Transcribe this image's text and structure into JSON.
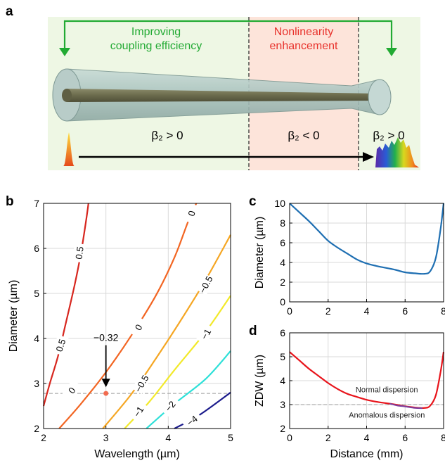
{
  "panel_a": {
    "letter": "a",
    "label_coupling": [
      "Improving",
      "coupling efficiency"
    ],
    "label_nonlinear": [
      "Nonlinearity",
      "enhancement"
    ],
    "beta_normal_left": "β₂ > 0",
    "beta_anomalous": "β₂ < 0",
    "beta_normal_right": "β₂ > 0",
    "colors": {
      "green": "#22aa33",
      "red": "#e8312b",
      "pink_region": "#fde4da",
      "green_bg": "#eef7e4"
    }
  },
  "chart_data": [
    {
      "panel": "b",
      "type": "contour",
      "xlabel": "Wavelength (µm)",
      "ylabel": "Diameter (µm)",
      "xlim": [
        2,
        5
      ],
      "ylim": [
        2,
        7
      ],
      "xticks": [
        "2",
        "3",
        "4",
        "5"
      ],
      "yticks": [
        "2",
        "3",
        "4",
        "5",
        "6",
        "7"
      ],
      "grid": true,
      "contours": [
        {
          "level": "0.5",
          "color": "#d7261e",
          "points": [
            [
              2.0,
              2.5
            ],
            [
              2.1,
              3.0
            ],
            [
              2.23,
              3.6
            ],
            [
              2.35,
              4.3
            ],
            [
              2.5,
              5.2
            ],
            [
              2.6,
              5.9
            ],
            [
              2.68,
              6.6
            ],
            [
              2.72,
              7.0
            ]
          ],
          "labels": [
            {
              "text": "0.5",
              "x": 2.27,
              "y": 3.85,
              "rot": -72
            },
            {
              "text": "0.5",
              "x": 2.57,
              "y": 5.9,
              "rot": -82
            }
          ]
        },
        {
          "level": "0",
          "color": "#f26522",
          "points": [
            [
              2.25,
              2.0
            ],
            [
              2.6,
              2.55
            ],
            [
              3.0,
              3.25
            ],
            [
              3.4,
              4.05
            ],
            [
              3.8,
              4.95
            ],
            [
              4.1,
              5.8
            ],
            [
              4.32,
              6.6
            ],
            [
              4.45,
              7.0
            ]
          ],
          "labels": [
            {
              "text": "0",
              "x": 2.45,
              "y": 2.85,
              "rot": -55
            },
            {
              "text": "0",
              "x": 3.52,
              "y": 4.25,
              "rot": -60
            },
            {
              "text": "0",
              "x": 4.37,
              "y": 6.78,
              "rot": -72
            }
          ]
        },
        {
          "level": "−0.5",
          "color": "#f5a623",
          "points": [
            [
              2.95,
              2.0
            ],
            [
              3.4,
              2.75
            ],
            [
              3.8,
              3.55
            ],
            [
              4.2,
              4.4
            ],
            [
              4.6,
              5.3
            ],
            [
              5.0,
              6.3
            ]
          ],
          "labels": [
            {
              "text": "−0.5",
              "x": 3.57,
              "y": 3.0,
              "rot": -60
            },
            {
              "text": "−0.5",
              "x": 4.6,
              "y": 5.2,
              "rot": -62
            }
          ]
        },
        {
          "level": "−1",
          "color": "#f2e92a",
          "points": [
            [
              3.3,
              2.0
            ],
            [
              3.7,
              2.6
            ],
            [
              4.1,
              3.3
            ],
            [
              4.6,
              4.15
            ],
            [
              5.0,
              4.95
            ]
          ],
          "labels": [
            {
              "text": "−1",
              "x": 3.52,
              "y": 2.38,
              "rot": -58
            },
            {
              "text": "−1",
              "x": 4.6,
              "y": 4.1,
              "rot": -60
            }
          ]
        },
        {
          "level": "−2",
          "color": "#2ee0d8",
          "points": [
            [
              3.65,
              2.0
            ],
            [
              4.1,
              2.55
            ],
            [
              4.6,
              3.1
            ],
            [
              5.0,
              3.72
            ]
          ],
          "labels": [
            {
              "text": "−2",
              "x": 4.03,
              "y": 2.5,
              "rot": -50
            }
          ]
        },
        {
          "level": "−4",
          "color": "#1c1c8c",
          "points": [
            [
              4.1,
              2.0
            ],
            [
              4.5,
              2.3
            ],
            [
              5.0,
              2.8
            ]
          ],
          "labels": [
            {
              "text": "−4",
              "x": 4.38,
              "y": 2.18,
              "rot": -38
            }
          ]
        }
      ],
      "dashed_line_y": 2.78,
      "marker": {
        "x": 3.0,
        "y": 2.78,
        "color": "#f26b4f"
      },
      "annotation": {
        "text": "−0.32",
        "arrow_from_y": 3.85,
        "arrow_to_y": 2.95
      }
    },
    {
      "panel": "c",
      "type": "line",
      "xlabel": "",
      "ylabel": "Diameter (µm)",
      "xlim": [
        0,
        8
      ],
      "ylim": [
        0,
        10
      ],
      "xticks": [
        "0",
        "2",
        "4",
        "6",
        "8"
      ],
      "yticks": [
        "0",
        "2",
        "4",
        "6",
        "8",
        "10"
      ],
      "grid": true,
      "series": [
        {
          "color": "#1f6fb2",
          "points": [
            [
              0,
              10
            ],
            [
              0.5,
              9.1
            ],
            [
              1,
              8.2
            ],
            [
              1.5,
              7.2
            ],
            [
              2,
              6.2
            ],
            [
              2.5,
              5.5
            ],
            [
              3,
              4.9
            ],
            [
              3.5,
              4.3
            ],
            [
              4,
              3.9
            ],
            [
              4.5,
              3.65
            ],
            [
              5,
              3.45
            ],
            [
              5.5,
              3.25
            ],
            [
              6,
              3.0
            ],
            [
              6.5,
              2.9
            ],
            [
              7,
              2.85
            ],
            [
              7.3,
              3.1
            ],
            [
              7.6,
              4.5
            ],
            [
              7.85,
              7.5
            ],
            [
              8,
              10
            ]
          ]
        }
      ]
    },
    {
      "panel": "d",
      "type": "line",
      "xlabel": "Distance (mm)",
      "ylabel": "ZDW (µm)",
      "xlim": [
        0,
        8
      ],
      "ylim": [
        2,
        6
      ],
      "xticks": [
        "0",
        "2",
        "4",
        "6",
        "8"
      ],
      "yticks": [
        "2",
        "3",
        "4",
        "5",
        "6"
      ],
      "grid": true,
      "dashed_line_y": 3.0,
      "annotations": [
        {
          "text": "Normal dispersion",
          "x": 5.05,
          "y": 3.52
        },
        {
          "text": "Anomalous dispersion",
          "x": 5.05,
          "y": 2.46
        }
      ],
      "series": [
        {
          "color": "#e8141b",
          "points": [
            [
              0,
              5.2
            ],
            [
              0.5,
              4.85
            ],
            [
              1,
              4.5
            ],
            [
              1.5,
              4.2
            ],
            [
              2,
              3.9
            ],
            [
              2.5,
              3.65
            ],
            [
              3,
              3.45
            ],
            [
              3.5,
              3.32
            ],
            [
              4,
              3.2
            ],
            [
              4.5,
              3.12
            ],
            [
              5,
              3.06
            ],
            [
              5.5,
              3.0
            ],
            [
              6,
              2.93
            ],
            [
              6.5,
              2.88
            ],
            [
              7,
              2.86
            ],
            [
              7.3,
              2.95
            ],
            [
              7.6,
              3.4
            ],
            [
              7.85,
              4.4
            ],
            [
              8,
              5.2
            ]
          ]
        },
        {
          "color": "#7b3fa0",
          "points": [
            [
              5.2,
              3.04
            ],
            [
              5.6,
              2.96
            ],
            [
              6,
              2.92
            ],
            [
              6.5,
              2.86
            ],
            [
              6.9,
              2.85
            ]
          ]
        }
      ]
    }
  ],
  "panel_letters": {
    "b": "b",
    "c": "c",
    "d": "d"
  }
}
